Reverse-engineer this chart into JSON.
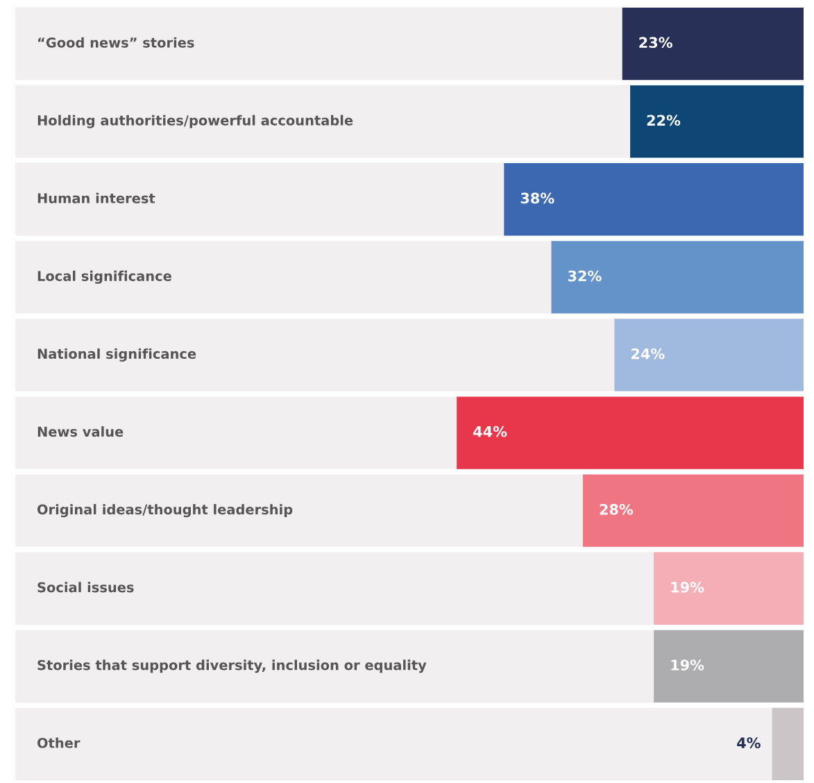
{
  "chart_data": {
    "type": "bar",
    "orientation": "horizontal",
    "categories": [
      "“Good news” stories",
      "Holding authorities/powerful accountable",
      "Human interest",
      "Local significance",
      "National significance",
      "News value",
      "Original ideas/thought leadership",
      "Social issues",
      "Stories that support diversity, inclusion or equality",
      "Other"
    ],
    "values": [
      23,
      22,
      38,
      32,
      24,
      44,
      28,
      19,
      19,
      4
    ],
    "value_labels": [
      "23%",
      "22%",
      "38%",
      "32%",
      "24%",
      "44%",
      "28%",
      "19%",
      "19%",
      "4%"
    ],
    "colors": [
      "#283058",
      "#0e4776",
      "#3c68b1",
      "#6393c9",
      "#9fbade",
      "#e8374b",
      "#f07582",
      "#f6aeb6",
      "#adadb0",
      "#cbc5c8"
    ],
    "xlim": [
      100,
      0
    ]
  }
}
